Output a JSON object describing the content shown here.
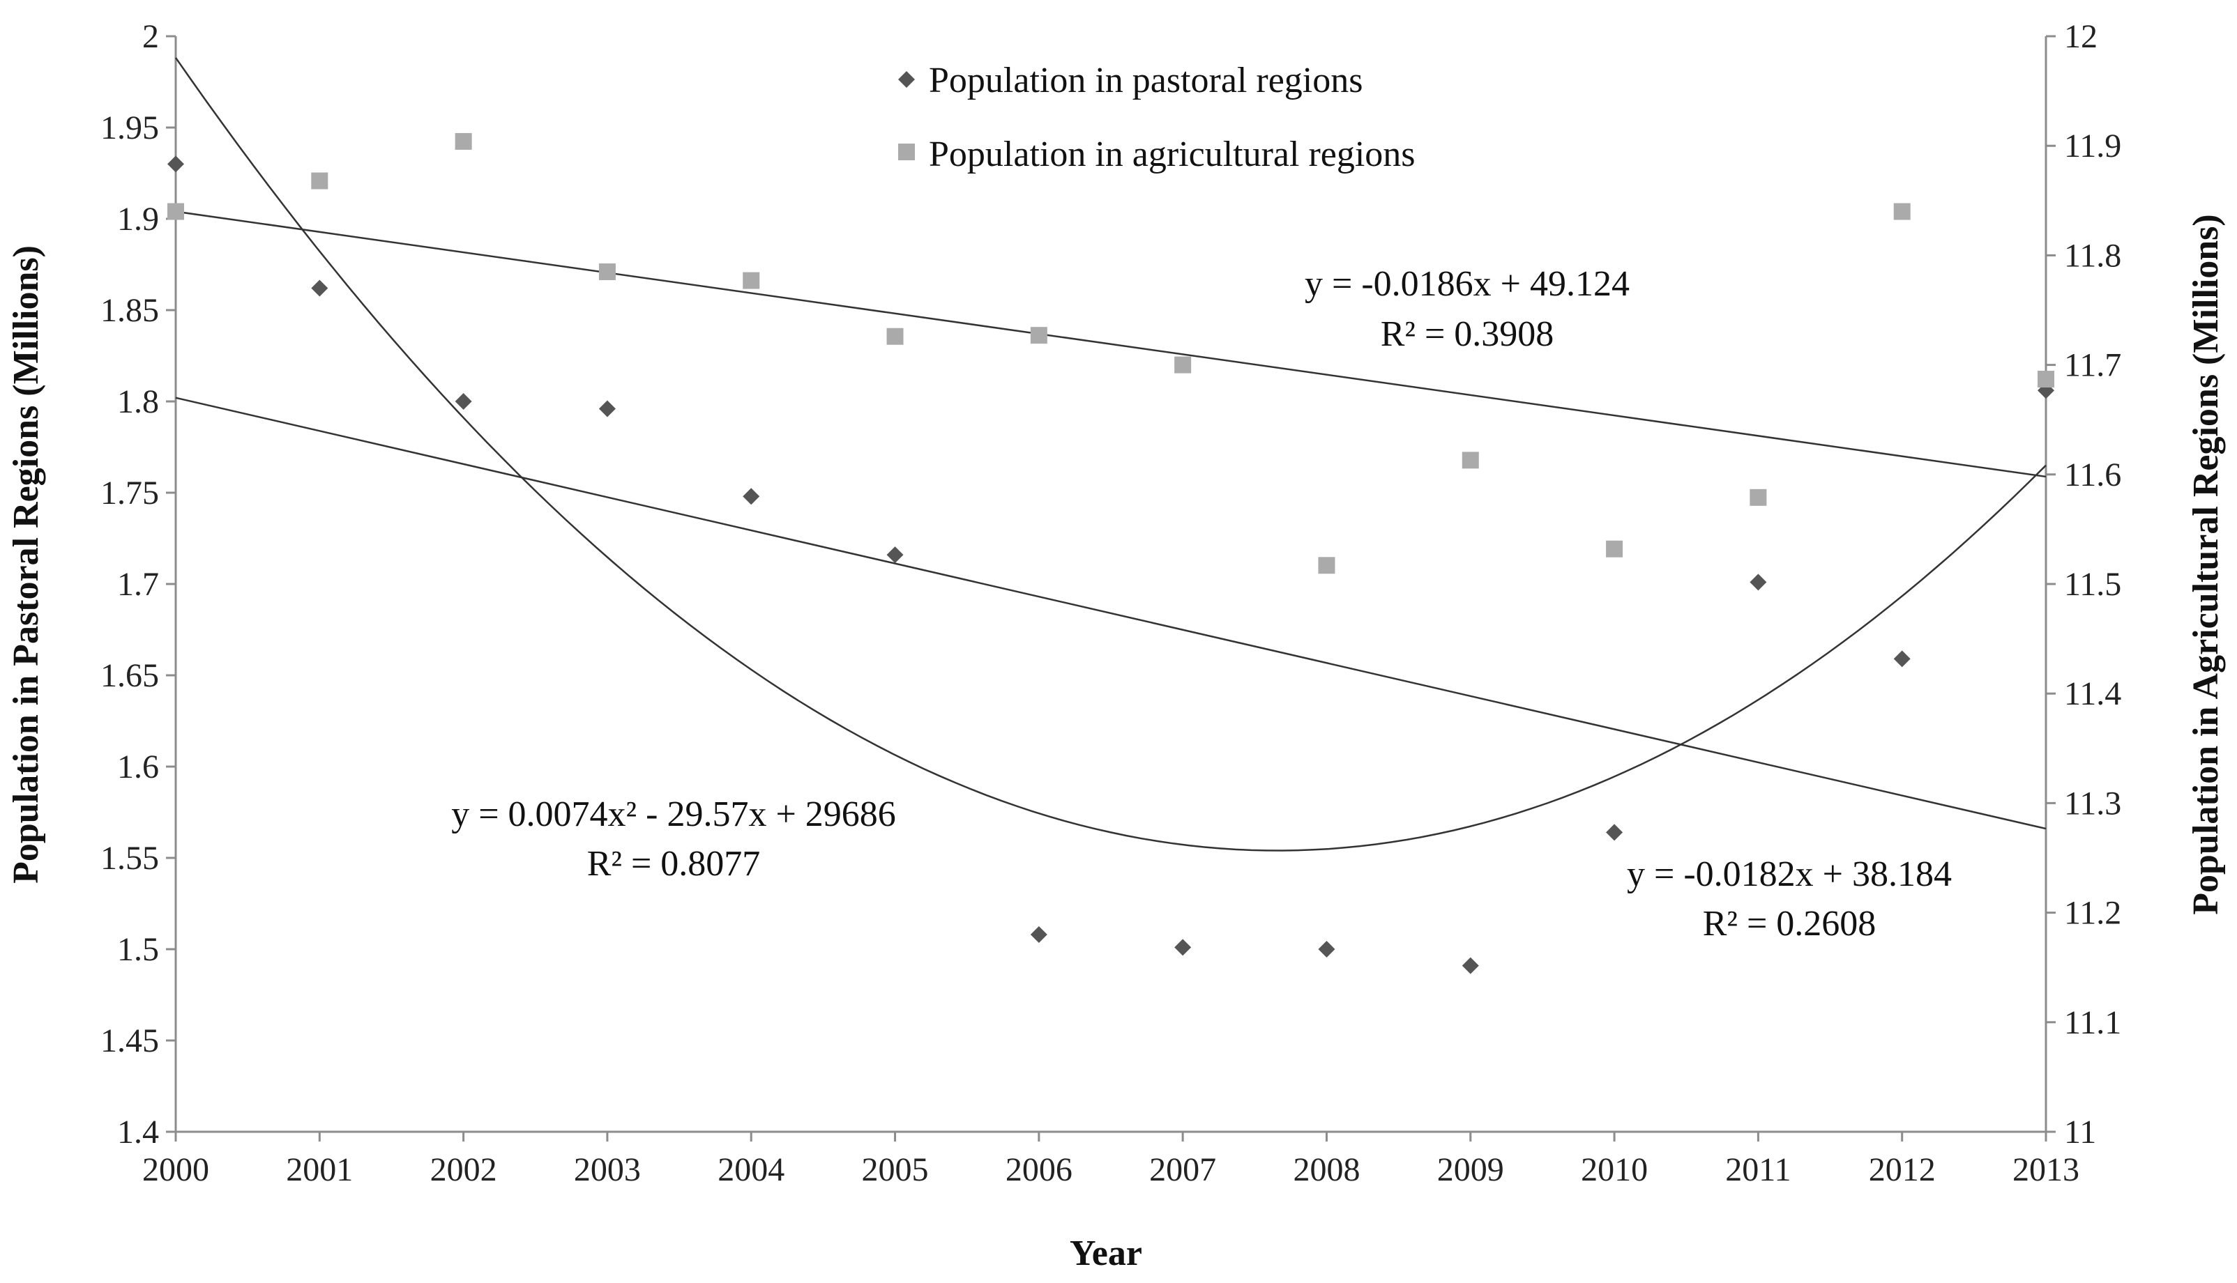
{
  "chart_data": {
    "type": "scatter",
    "x": [
      2000,
      2001,
      2002,
      2003,
      2004,
      2005,
      2006,
      2007,
      2008,
      2009,
      2010,
      2011,
      2012,
      2013
    ],
    "xlabel": "Year",
    "ylabel_left": "Population in Pastoral Regions (Millions)",
    "ylabel_right": "Population in Agricultural  Regions (Millions)",
    "xlim": [
      2000,
      2013
    ],
    "ylim_left": [
      1.4,
      2
    ],
    "ylim_right": [
      11,
      12
    ],
    "x_ticks": [
      "2000",
      "2001",
      "2002",
      "2003",
      "2004",
      "2005",
      "2006",
      "2007",
      "2008",
      "2009",
      "2010",
      "2011",
      "2012",
      "2013"
    ],
    "y_ticks_left": [
      "1.4",
      "1.45",
      "1.5",
      "1.55",
      "1.6",
      "1.65",
      "1.7",
      "1.75",
      "1.8",
      "1.85",
      "1.9",
      "1.95",
      "2"
    ],
    "y_ticks_right": [
      "11",
      "11.1",
      "11.2",
      "11.3",
      "11.4",
      "11.5",
      "11.6",
      "11.7",
      "11.8",
      "11.9",
      "12"
    ],
    "legend_position": "top-center",
    "grid": false,
    "series": [
      {
        "name": "Population in pastoral regions",
        "axis": "left",
        "marker": "diamond",
        "color": "#555555",
        "values": [
          1.93,
          1.862,
          1.8,
          1.796,
          1.748,
          1.716,
          1.508,
          1.501,
          1.5,
          1.491,
          1.564,
          1.701,
          1.659,
          1.806
        ]
      },
      {
        "name": "Population in agricultural regions",
        "axis": "right",
        "marker": "square",
        "color": "#aaaaaa",
        "values": [
          11.84,
          11.868,
          11.904,
          11.785,
          11.777,
          11.726,
          11.727,
          11.7,
          11.517,
          11.613,
          11.532,
          11.579,
          11.84,
          11.687
        ]
      }
    ],
    "trendlines": [
      {
        "axis": "right",
        "kind": "linear",
        "equation": "y = -0.0186x + 49.124",
        "r2": "R² = 0.3908",
        "start": [
          2000,
          11.84
        ],
        "end": [
          2013,
          11.598
        ]
      },
      {
        "axis": "left",
        "kind": "linear",
        "equation": "y = -0.0182x + 38.184",
        "r2": "R² = 0.2608",
        "start": [
          2000,
          1.802
        ],
        "end": [
          2013,
          1.566
        ]
      },
      {
        "axis": "left",
        "kind": "polynomial",
        "equation": "y = 0.0074x² - 29.57x + 29686",
        "r2": "R² = 0.8077",
        "vertex": [
          2007.66,
          1.554
        ],
        "a": 0.0074,
        "curve_xlim": [
          2000,
          2013
        ]
      }
    ]
  }
}
